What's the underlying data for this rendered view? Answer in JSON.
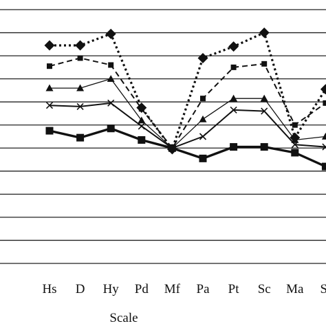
{
  "chart_data": {
    "type": "line",
    "xlabel": "Scale",
    "ylabel": "",
    "categories": [
      "Hs",
      "D",
      "Hy",
      "Pd",
      "Mf",
      "Pa",
      "Pt",
      "Sc",
      "Ma",
      "Si"
    ],
    "ylim": [
      0,
      11
    ],
    "grid": true,
    "gridline_values": [
      0,
      1,
      2,
      3,
      4,
      5,
      6,
      7,
      8,
      9,
      10,
      11
    ],
    "legend": "none",
    "series": [
      {
        "marker": "diamond",
        "line_style": "dotted",
        "values": [
          9.45,
          9.45,
          9.95,
          6.75,
          4.95,
          8.9,
          9.4,
          10.0,
          5.45,
          7.55
        ]
      },
      {
        "marker": "square-small",
        "line_style": "dashed",
        "values": [
          8.55,
          8.9,
          8.6,
          6.7,
          5.0,
          7.15,
          8.5,
          8.65,
          6.0,
          6.95
        ]
      },
      {
        "marker": "triangle",
        "line_style": "solid-thin",
        "values": [
          7.6,
          7.6,
          8.0,
          6.2,
          5.0,
          6.25,
          7.15,
          7.15,
          5.35,
          5.5
        ]
      },
      {
        "marker": "x",
        "line_style": "solid",
        "values": [
          6.85,
          6.8,
          6.95,
          5.95,
          5.0,
          5.5,
          6.65,
          6.6,
          5.15,
          5.05
        ]
      },
      {
        "marker": "square",
        "line_style": "solid-thick",
        "values": [
          5.75,
          5.45,
          5.85,
          5.35,
          5.0,
          4.55,
          5.05,
          5.05,
          4.8,
          4.2
        ]
      }
    ],
    "colors": {
      "line": "#111111",
      "grid": "#222222",
      "background": "#ffffff"
    }
  }
}
